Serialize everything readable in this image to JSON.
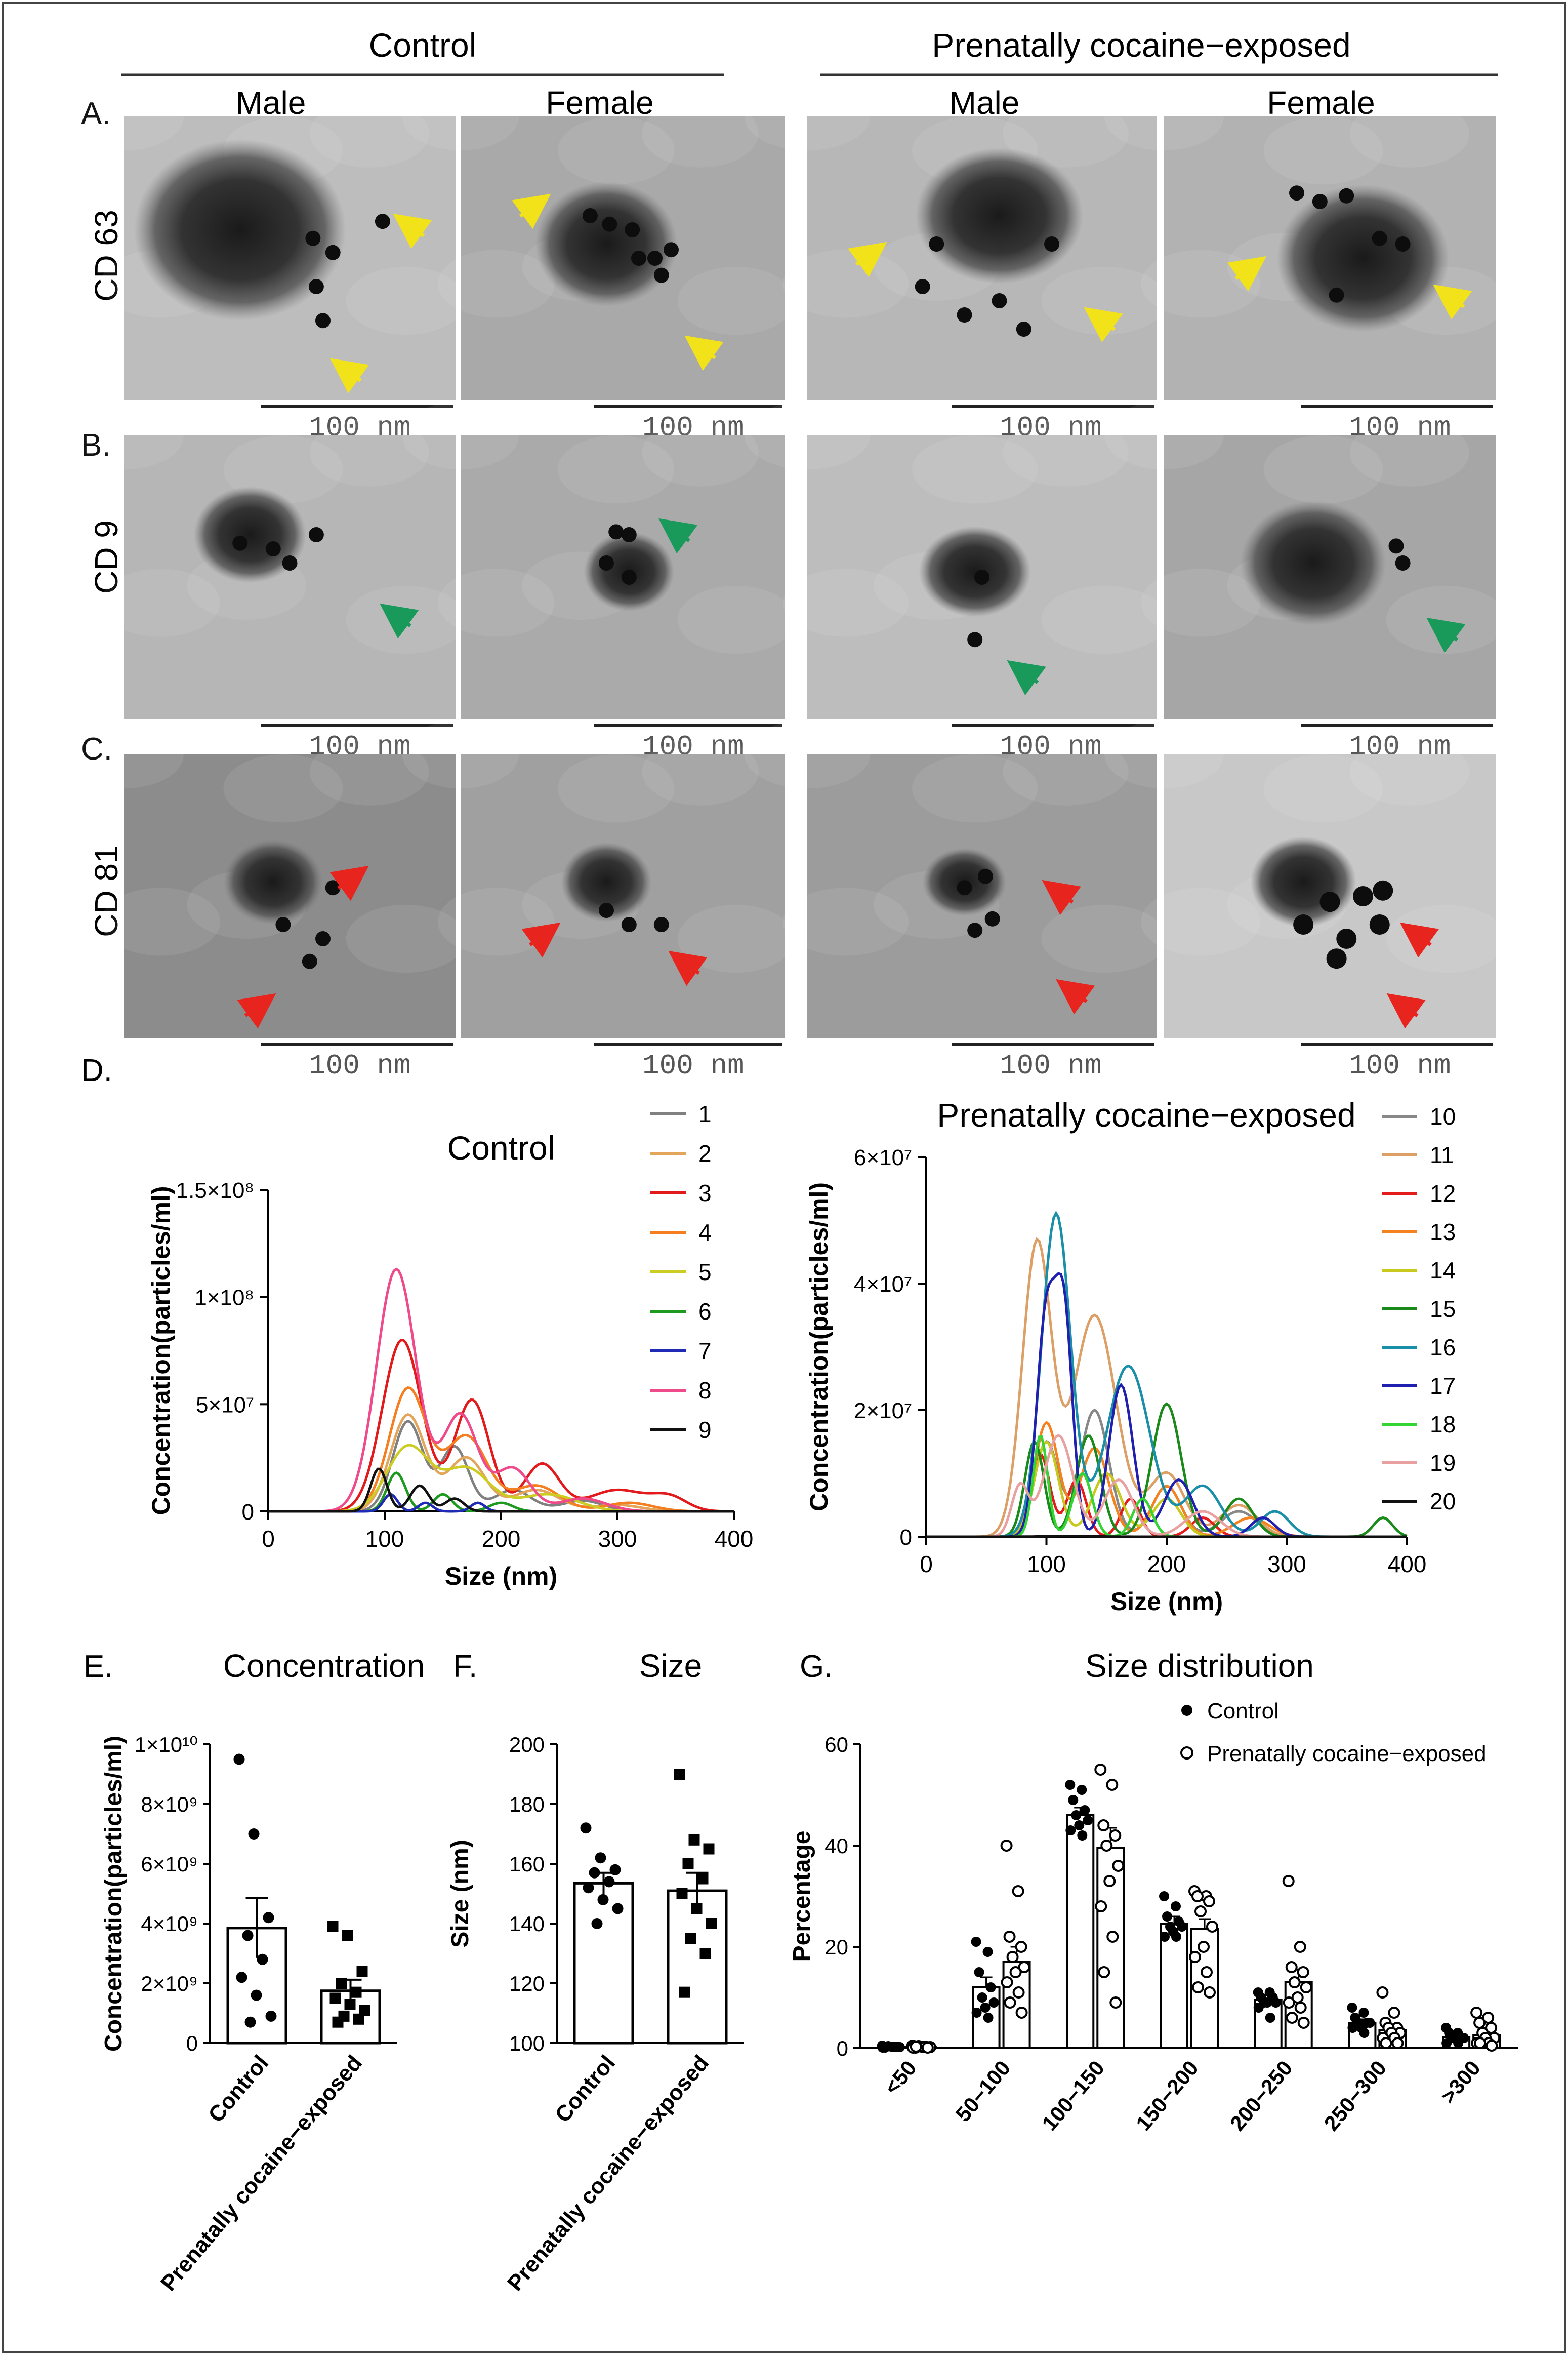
{
  "headers": {
    "control": "Control",
    "pce": "Prenatally cocaine−exposed",
    "male": "Male",
    "female": "Female"
  },
  "panels": {
    "A": "A.",
    "B": "B.",
    "C": "C.",
    "D": "D.",
    "E": "E.",
    "F": "F.",
    "G": "G."
  },
  "rows": {
    "cd63": "CD 63",
    "cd9": "CD 9",
    "cd81": "CD 81"
  },
  "scalebar": "100 nm",
  "arrow_colors": {
    "cd63": "#f2e21a",
    "cd9": "#1a9a5a",
    "cd81": "#e8241f"
  },
  "series_colors": {
    "1": "#808080",
    "2": "#e3a55a",
    "3": "#e31a1c",
    "4": "#f57e21",
    "5": "#cccc22",
    "6": "#1e9a1e",
    "7": "#1f2bb5",
    "8": "#ef4a8a",
    "9": "#111111",
    "10": "#888888",
    "11": "#dca066",
    "12": "#e51c1c",
    "13": "#f58220",
    "14": "#c8c81e",
    "15": "#1a8a1a",
    "16": "#1a90a8",
    "17": "#2020b0",
    "18": "#33d433",
    "19": "#e8a0a0",
    "20": "#111111"
  },
  "chart_data": [
    {
      "id": "D-control",
      "type": "line",
      "title": "Control",
      "xlabel": "Size (nm)",
      "ylabel": "Concentration(particles/ml)",
      "xlim": [
        0,
        400
      ],
      "ylim": [
        0,
        150000000
      ],
      "xticks": [
        "0",
        "100",
        "200",
        "300",
        "400"
      ],
      "yticks": [
        "0",
        "5×10⁷",
        "1×10⁸",
        "1.5×10⁸"
      ],
      "legend": "top-right",
      "series": [
        {
          "name": "1",
          "peaks": [
            [
              120,
              42000000,
              13
            ],
            [
              160,
              30000000,
              12
            ],
            [
              210,
              10000000,
              16
            ],
            [
              270,
              5000000,
              18
            ]
          ]
        },
        {
          "name": "2",
          "peaks": [
            [
              120,
              45000000,
              15
            ],
            [
              170,
              25000000,
              16
            ],
            [
              230,
              10000000,
              20
            ],
            [
              300,
              3000000,
              20
            ]
          ]
        },
        {
          "name": "3",
          "peaks": [
            [
              115,
              80000000,
              17
            ],
            [
              175,
              52000000,
              15
            ],
            [
              235,
              22000000,
              15
            ],
            [
              300,
              10000000,
              25
            ],
            [
              345,
              6000000,
              15
            ]
          ]
        },
        {
          "name": "4",
          "peaks": [
            [
              120,
              57000000,
              16
            ],
            [
              170,
              35000000,
              18
            ],
            [
              230,
              12000000,
              20
            ],
            [
              310,
              4000000,
              20
            ]
          ]
        },
        {
          "name": "5",
          "peaks": [
            [
              120,
              30000000,
              18
            ],
            [
              170,
              20000000,
              20
            ],
            [
              240,
              8000000,
              25
            ]
          ]
        },
        {
          "name": "6",
          "peaks": [
            [
              110,
              18000000,
              8
            ],
            [
              150,
              8000000,
              8
            ],
            [
              200,
              4000000,
              10
            ]
          ]
        },
        {
          "name": "7",
          "peaks": [
            [
              105,
              8000000,
              6
            ],
            [
              135,
              4000000,
              6
            ],
            [
              180,
              4000000,
              6
            ]
          ]
        },
        {
          "name": "8",
          "peaks": [
            [
              110,
              113000000,
              17
            ],
            [
              165,
              45000000,
              15
            ],
            [
              210,
              20000000,
              15
            ],
            [
              270,
              6000000,
              20
            ]
          ]
        },
        {
          "name": "9",
          "peaks": [
            [
              95,
              20000000,
              7
            ],
            [
              130,
              12000000,
              8
            ],
            [
              160,
              6000000,
              8
            ]
          ]
        }
      ]
    },
    {
      "id": "D-pce",
      "type": "line",
      "title": "Prenatally cocaine−exposed",
      "xlabel": "Size (nm)",
      "ylabel": "Concentration(particles/ml)",
      "xlim": [
        0,
        400
      ],
      "ylim": [
        0,
        60000000
      ],
      "xticks": [
        "0",
        "100",
        "200",
        "300",
        "400"
      ],
      "yticks": [
        "0",
        "2×10⁷",
        "4×10⁷",
        "6×10⁷"
      ],
      "legend": "top-right",
      "series": [
        {
          "name": "10",
          "peaks": [
            [
              100,
              15000000,
              10
            ],
            [
              140,
              20000000,
              12
            ],
            [
              200,
              8000000,
              12
            ],
            [
              260,
              4000000,
              15
            ]
          ]
        },
        {
          "name": "11",
          "peaks": [
            [
              92,
              46000000,
              12
            ],
            [
              140,
              35000000,
              18
            ],
            [
              200,
              10000000,
              15
            ],
            [
              260,
              5000000,
              15
            ]
          ]
        },
        {
          "name": "12",
          "peaks": [
            [
              95,
              13000000,
              8
            ],
            [
              125,
              9000000,
              8
            ],
            [
              170,
              6000000,
              8
            ],
            [
              230,
              3000000,
              10
            ]
          ]
        },
        {
          "name": "13",
          "peaks": [
            [
              100,
              18000000,
              10
            ],
            [
              140,
              14000000,
              12
            ],
            [
              200,
              8000000,
              12
            ],
            [
              270,
              3000000,
              15
            ]
          ]
        },
        {
          "name": "14",
          "peaks": [
            [
              100,
              15000000,
              10
            ],
            [
              150,
              10000000,
              12
            ],
            [
              200,
              6000000,
              12
            ]
          ]
        },
        {
          "name": "15",
          "peaks": [
            [
              90,
              15000000,
              8
            ],
            [
              135,
              16000000,
              10
            ],
            [
              200,
              21000000,
              12
            ],
            [
              260,
              6000000,
              12
            ],
            [
              380,
              3000000,
              8
            ]
          ]
        },
        {
          "name": "16",
          "peaks": [
            [
              108,
              51000000,
              12
            ],
            [
              168,
              27000000,
              18
            ],
            [
              230,
              8000000,
              15
            ],
            [
              290,
              4000000,
              12
            ]
          ]
        },
        {
          "name": "17",
          "peaks": [
            [
              100,
              35000000,
              8
            ],
            [
              115,
              33000000,
              7
            ],
            [
              162,
              24000000,
              10
            ],
            [
              210,
              9000000,
              12
            ],
            [
              280,
              3000000,
              10
            ]
          ]
        },
        {
          "name": "18",
          "peaks": [
            [
              95,
              16000000,
              6
            ],
            [
              130,
              10000000,
              8
            ],
            [
              180,
              6000000,
              8
            ]
          ]
        },
        {
          "name": "19",
          "peaks": [
            [
              78,
              8000000,
              7
            ],
            [
              110,
              16000000,
              12
            ],
            [
              160,
              9000000,
              12
            ],
            [
              230,
              4000000,
              15
            ]
          ]
        },
        {
          "name": "20",
          "peaks": [
            [
              120,
              100000,
              20
            ]
          ]
        }
      ]
    },
    {
      "id": "E",
      "type": "bar",
      "title": "Concentration",
      "ylabel": "Concentration(particles/ml)",
      "categories": [
        "Control",
        "Prenatally cocaine−exposed"
      ],
      "values": [
        3850000000,
        1750000000
      ],
      "errors": [
        1000000000,
        370000000
      ],
      "ylim": [
        0,
        10000000000
      ],
      "yticks": [
        "0",
        "2×10⁹",
        "4×10⁹",
        "6×10⁹",
        "8×10⁹",
        "1×10¹⁰"
      ],
      "points": [
        [
          9500000000,
          7000000000,
          4200000000,
          3600000000,
          2800000000,
          2200000000,
          1600000000,
          900000000,
          700000000
        ],
        [
          3900000000,
          3600000000,
          2400000000,
          2000000000,
          1700000000,
          1500000000,
          1300000000,
          1100000000,
          900000000,
          800000000,
          700000000
        ]
      ]
    },
    {
      "id": "F",
      "type": "bar",
      "title": "Size",
      "ylabel": "Size (nm)",
      "categories": [
        "Control",
        "Prenatally cocaine−exposed"
      ],
      "values": [
        153.5,
        151
      ],
      "errors": [
        3.5,
        6
      ],
      "ylim": [
        100,
        200
      ],
      "yticks": [
        "100",
        "120",
        "140",
        "160",
        "180",
        "200"
      ],
      "points": [
        [
          172,
          162,
          158,
          157,
          154,
          152,
          148,
          145,
          140
        ],
        [
          190,
          168,
          165,
          160,
          155,
          150,
          145,
          140,
          135,
          130,
          117
        ]
      ]
    },
    {
      "id": "G",
      "type": "bar",
      "title": "Size distribution",
      "ylabel": "Percentage",
      "categories": [
        "<50",
        "50−100",
        "100−150",
        "150−200",
        "200−250",
        "250−300",
        ">300"
      ],
      "ylim": [
        0,
        60
      ],
      "yticks": [
        "0",
        "20",
        "40",
        "60"
      ],
      "legend": "top-right",
      "series": [
        {
          "name": "Control",
          "values": [
            0.3,
            12,
            46,
            24.5,
            9.5,
            5,
            2.2
          ],
          "errors": [
            0.1,
            2,
            1.5,
            1.5,
            1,
            0.7,
            0.4
          ],
          "points": [
            [
              0.5,
              0.2,
              0.1,
              0.3,
              0.4,
              0.2,
              0.3,
              0.1,
              0.2
            ],
            [
              21,
              19,
              15,
              12,
              10,
              9,
              8,
              7,
              6
            ],
            [
              52,
              51,
              49,
              47,
              46,
              45,
              44,
              43,
              42
            ],
            [
              30,
              28,
              26,
              25,
              24,
              24,
              23,
              22,
              22
            ],
            [
              11,
              11,
              10,
              10,
              9,
              9,
              9,
              8,
              6
            ],
            [
              8,
              7,
              6,
              5,
              5,
              5,
              4,
              4,
              3
            ],
            [
              4,
              3,
              3,
              2,
              2,
              2,
              2,
              1,
              1
            ]
          ]
        },
        {
          "name": "Prenatally cocaine−exposed",
          "values": [
            0.2,
            17,
            39.5,
            23.5,
            13,
            3.5,
            2.5
          ],
          "errors": [
            0.1,
            3,
            4,
            2,
            2.5,
            1,
            0.8
          ],
          "points": [
            [
              0.5,
              0.3,
              0.1,
              0.2,
              0.4,
              0.2,
              0.3,
              0.1,
              0.2,
              0.3,
              0.1
            ],
            [
              40,
              31,
              22,
              20,
              18,
              16,
              15,
              13,
              11,
              9,
              7
            ],
            [
              55,
              52,
              44,
              42,
              40,
              36,
              33,
              28,
              22,
              15,
              9
            ],
            [
              31,
              30,
              30,
              29,
              27,
              24,
              20,
              18,
              15,
              12,
              11
            ],
            [
              33,
              20,
              16,
              15,
              13,
              12,
              10,
              9,
              8,
              6,
              5
            ],
            [
              11,
              7,
              5,
              4,
              4,
              3,
              3,
              2,
              2,
              1,
              1
            ],
            [
              7,
              6,
              5,
              4,
              3,
              2,
              2,
              1,
              1,
              1,
              0.5
            ]
          ]
        }
      ]
    }
  ]
}
